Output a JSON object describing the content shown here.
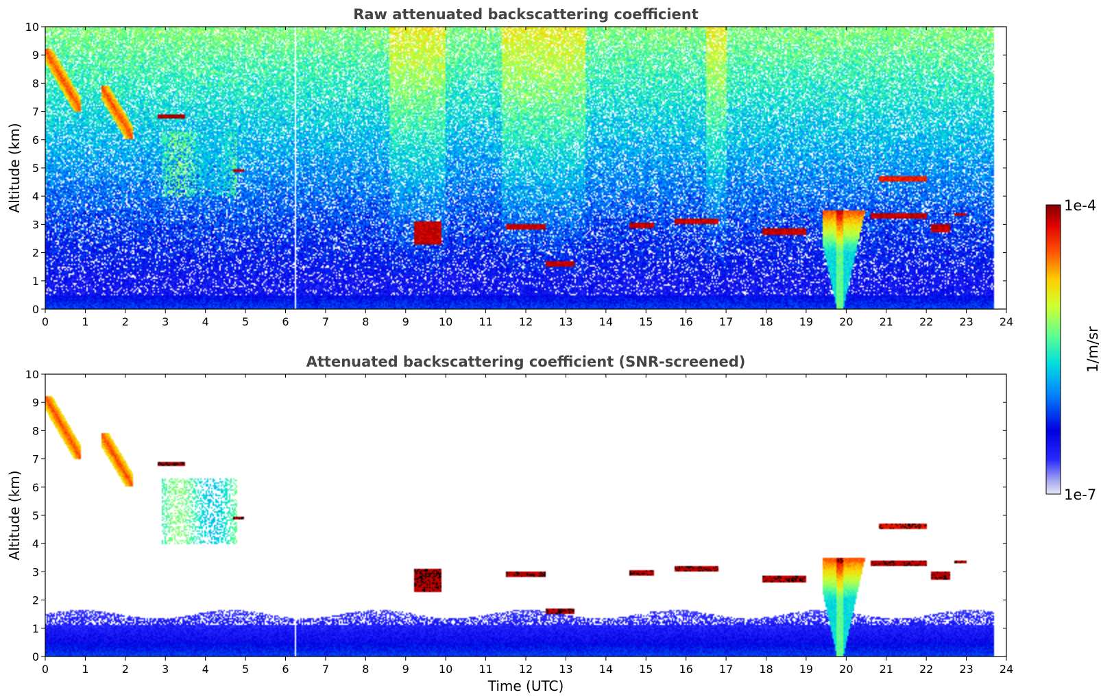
{
  "chart_data": [
    {
      "type": "heatmap",
      "title": "Raw attenuated backscattering coefficient",
      "xlabel": "",
      "ylabel": "Altitude (km)",
      "xlim": [
        0,
        24
      ],
      "ylim": [
        0,
        10
      ],
      "x_ticks": [
        0,
        1,
        2,
        3,
        4,
        5,
        6,
        7,
        8,
        9,
        10,
        11,
        12,
        13,
        14,
        15,
        16,
        17,
        18,
        19,
        20,
        21,
        22,
        23,
        24
      ],
      "y_ticks": [
        0,
        1,
        2,
        3,
        4,
        5,
        6,
        7,
        8,
        9,
        10
      ],
      "data_extent_x": [
        0,
        23.7
      ],
      "gap_at_time": 6.25,
      "colormap": "jet",
      "layers": [
        {
          "name": "cirrus-1",
          "t": [
            0.0,
            0.9
          ],
          "z": [
            7.0,
            9.2
          ],
          "level": 0.8
        },
        {
          "name": "cirrus-2",
          "t": [
            1.4,
            2.2
          ],
          "z": [
            6.0,
            7.9
          ],
          "level": 0.8
        },
        {
          "name": "layer-6.8",
          "t": [
            2.8,
            3.5
          ],
          "z": [
            6.75,
            6.9
          ],
          "level": 0.97
        },
        {
          "name": "virga",
          "t": [
            2.9,
            4.8
          ],
          "z": [
            4.0,
            6.3
          ],
          "level": 0.5
        },
        {
          "name": "layer-4.9",
          "t": [
            4.7,
            4.95
          ],
          "z": [
            4.85,
            4.95
          ],
          "level": 0.95
        },
        {
          "name": "cloud-3km-a",
          "t": [
            9.2,
            9.9
          ],
          "z": [
            2.3,
            3.1
          ],
          "level": 0.95
        },
        {
          "name": "cloud-3km-b",
          "t": [
            11.5,
            12.5
          ],
          "z": [
            2.8,
            3.0
          ],
          "level": 0.95
        },
        {
          "name": "cloud-1.6km",
          "t": [
            12.5,
            13.2
          ],
          "z": [
            1.5,
            1.7
          ],
          "level": 0.95
        },
        {
          "name": "cloud-3km-c",
          "t": [
            14.6,
            15.2
          ],
          "z": [
            2.85,
            3.05
          ],
          "level": 0.95
        },
        {
          "name": "cloud-3km-d",
          "t": [
            15.7,
            16.8
          ],
          "z": [
            3.0,
            3.2
          ],
          "level": 0.95
        },
        {
          "name": "cloud-2.7km",
          "t": [
            17.9,
            19.0
          ],
          "z": [
            2.6,
            2.85
          ],
          "level": 0.95
        },
        {
          "name": "convective",
          "t": [
            19.4,
            20.6
          ],
          "z": [
            0.0,
            3.5
          ],
          "level": 0.55
        },
        {
          "name": "cloud-3.3km",
          "t": [
            20.6,
            22.0
          ],
          "z": [
            3.2,
            3.4
          ],
          "level": 0.95
        },
        {
          "name": "layer-4.6",
          "t": [
            20.8,
            22.0
          ],
          "z": [
            4.5,
            4.7
          ],
          "level": 0.9
        },
        {
          "name": "cloud-2.9km",
          "t": [
            22.1,
            22.6
          ],
          "z": [
            2.7,
            3.0
          ],
          "level": 0.95
        },
        {
          "name": "cloud-3.35km",
          "t": [
            22.7,
            23.0
          ],
          "z": [
            3.3,
            3.4
          ],
          "level": 0.95
        },
        {
          "name": "boundary-layer",
          "t": [
            0.0,
            23.7
          ],
          "z": [
            0.0,
            0.5
          ],
          "level": 0.25
        }
      ]
    },
    {
      "type": "heatmap",
      "title": "Attenuated backscattering coefficient (SNR-screened)",
      "xlabel": "Time (UTC)",
      "ylabel": "Altitude (km)",
      "xlim": [
        0,
        24
      ],
      "ylim": [
        0,
        10
      ],
      "x_ticks": [
        0,
        1,
        2,
        3,
        4,
        5,
        6,
        7,
        8,
        9,
        10,
        11,
        12,
        13,
        14,
        15,
        16,
        17,
        18,
        19,
        20,
        21,
        22,
        23,
        24
      ],
      "y_ticks": [
        0,
        1,
        2,
        3,
        4,
        5,
        6,
        7,
        8,
        9,
        10
      ],
      "data_extent_x": [
        0,
        23.7
      ],
      "gap_at_time": 6.25,
      "colormap": "jet",
      "screened": true,
      "boundary_layer_top_km": 1.5
    }
  ],
  "colorbar": {
    "label": "1/m/sr",
    "max_label": "1e-4",
    "min_label": "1e-7",
    "scale": "log",
    "range": [
      1e-07,
      0.0001
    ]
  }
}
